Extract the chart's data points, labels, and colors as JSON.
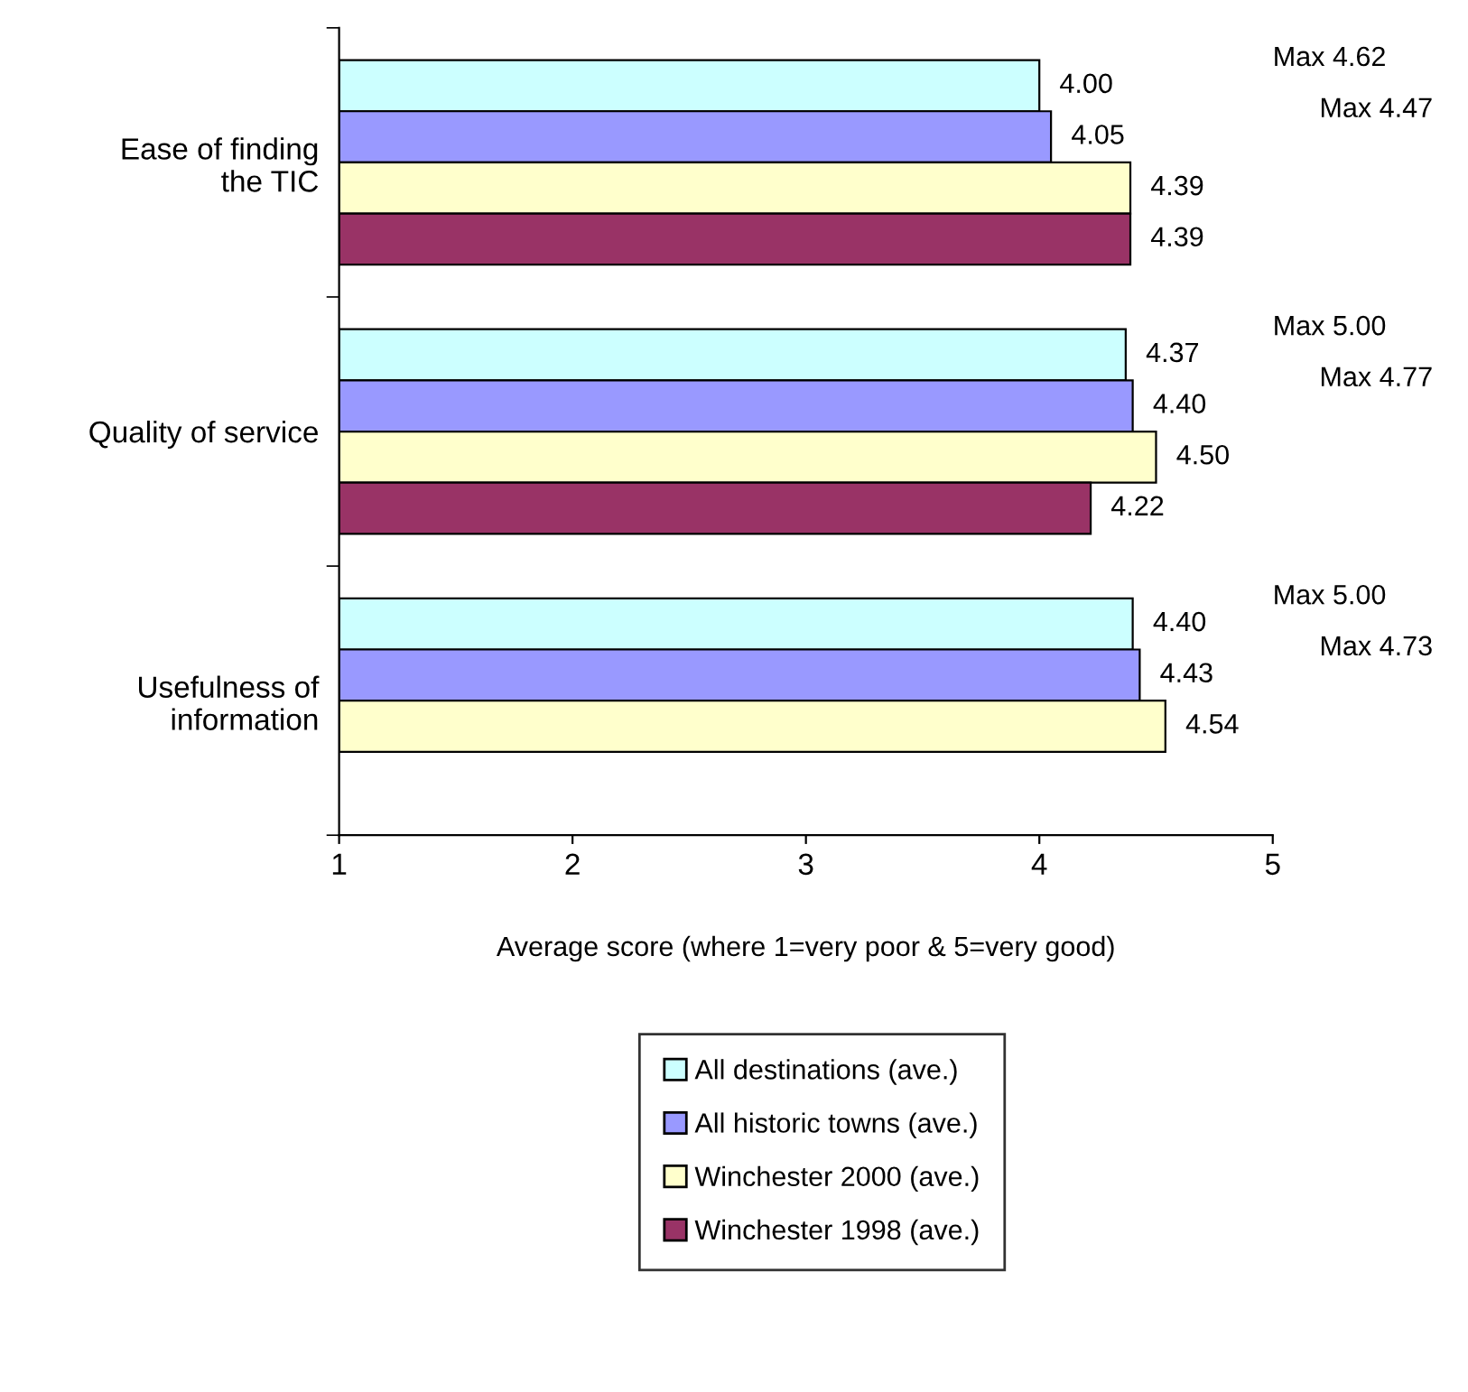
{
  "chart_data": {
    "type": "bar",
    "orientation": "horizontal",
    "xlabel": "Average score (where 1=very poor & 5=very good)",
    "categories": [
      "Ease of finding\nthe TIC",
      "Quality of service",
      "Usefulness of\ninformation"
    ],
    "series": [
      {
        "name": "All destinations (ave.)",
        "color": "#ccffff",
        "values": [
          4.0,
          4.37,
          4.4
        ],
        "value_labels": [
          "4.00",
          "4.37",
          "4.40"
        ]
      },
      {
        "name": "All historic towns (ave.)",
        "color": "#9999ff",
        "values": [
          4.05,
          4.4,
          4.43
        ],
        "value_labels": [
          "4.05",
          "4.40",
          "4.43"
        ]
      },
      {
        "name": "Winchester 2000 (ave.)",
        "color": "#ffffcc",
        "values": [
          4.39,
          4.5,
          4.54
        ],
        "value_labels": [
          "4.39",
          "4.50",
          "4.54"
        ]
      },
      {
        "name": "Winchester 1998 (ave.)",
        "color": "#993366",
        "values": [
          4.39,
          4.22,
          null
        ],
        "value_labels": [
          "4.39",
          "4.22",
          null
        ]
      }
    ],
    "xlim": [
      1,
      5
    ],
    "xticks": [
      1,
      2,
      3,
      4,
      5
    ],
    "grid": false,
    "legend": "bottom",
    "annotations": [
      "Max 4.62",
      "Max 4.47",
      "Max 5.00",
      "Max 4.77",
      "Max 5.00",
      "Max 4.73"
    ]
  }
}
